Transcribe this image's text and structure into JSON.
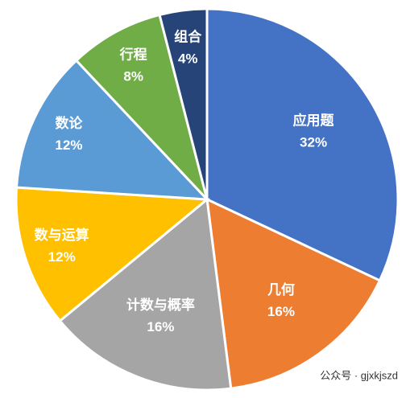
{
  "chart_data": {
    "type": "pie",
    "categories": [
      "应用题",
      "几何",
      "计数与概率",
      "数与运算",
      "数论",
      "行程",
      "组合"
    ],
    "values": [
      32,
      16,
      16,
      12,
      12,
      8,
      4
    ],
    "value_labels": [
      "32%",
      "16%",
      "16%",
      "12%",
      "12%",
      "8%",
      "4%"
    ],
    "colors": [
      "#4472c4",
      "#ed7d31",
      "#a5a5a5",
      "#ffc000",
      "#5b9bd5",
      "#70ad47",
      "#264478"
    ]
  },
  "watermark": "公众号 · gjxkjszd"
}
